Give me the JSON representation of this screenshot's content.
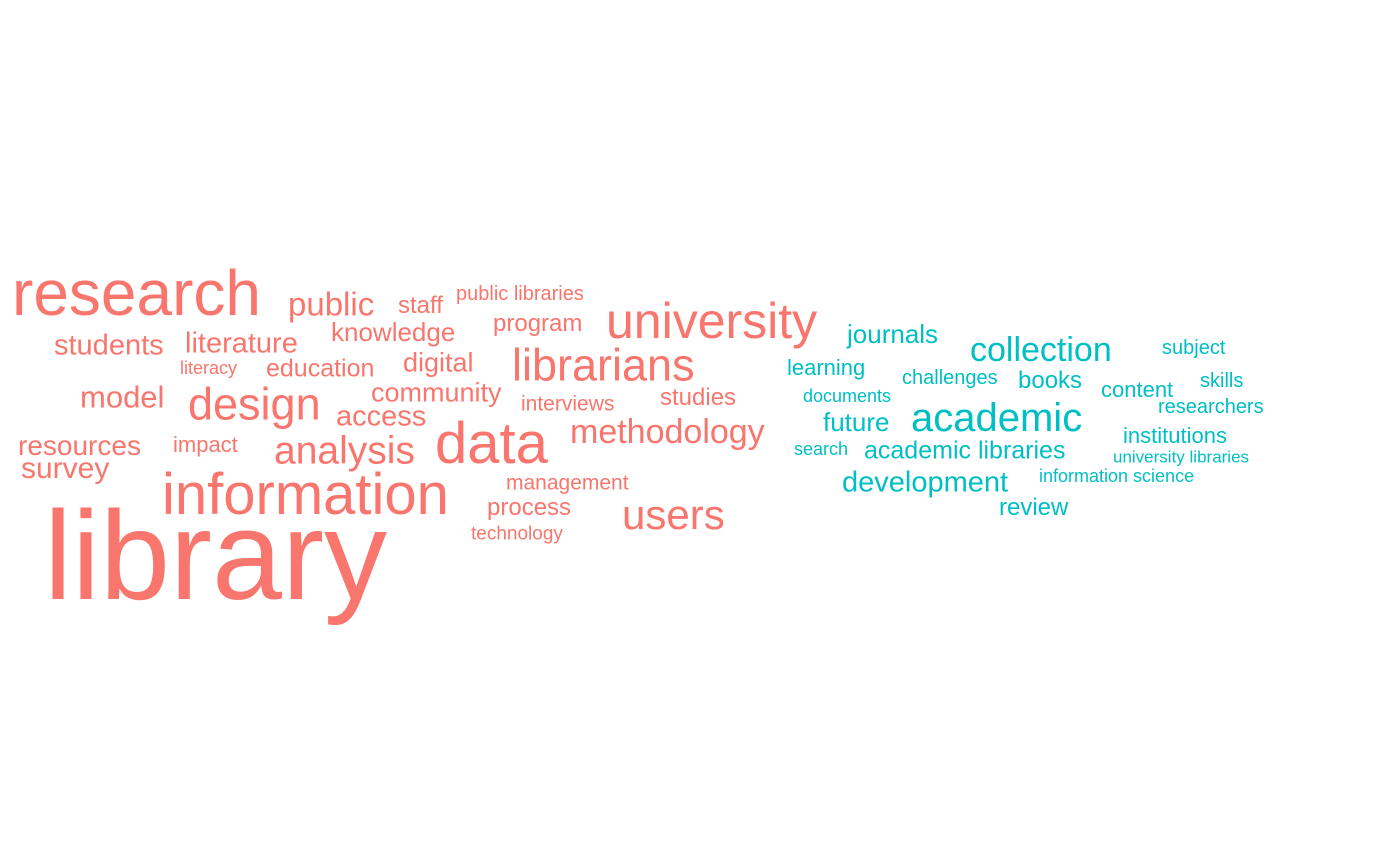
{
  "colors": {
    "group_a": "#F8766D",
    "group_b": "#00BFC4",
    "background": "#FFFFFF"
  },
  "words": [
    {
      "text": "library",
      "group": "a"
    },
    {
      "text": "research",
      "group": "a"
    },
    {
      "text": "information",
      "group": "a"
    },
    {
      "text": "data",
      "group": "a"
    },
    {
      "text": "university",
      "group": "a"
    },
    {
      "text": "librarians",
      "group": "a"
    },
    {
      "text": "design",
      "group": "a"
    },
    {
      "text": "analysis",
      "group": "a"
    },
    {
      "text": "users",
      "group": "a"
    },
    {
      "text": "methodology",
      "group": "a"
    },
    {
      "text": "public",
      "group": "a"
    },
    {
      "text": "students",
      "group": "a"
    },
    {
      "text": "literature",
      "group": "a"
    },
    {
      "text": "model",
      "group": "a"
    },
    {
      "text": "access",
      "group": "a"
    },
    {
      "text": "community",
      "group": "a"
    },
    {
      "text": "resources",
      "group": "a"
    },
    {
      "text": "survey",
      "group": "a"
    },
    {
      "text": "knowledge",
      "group": "a"
    },
    {
      "text": "digital",
      "group": "a"
    },
    {
      "text": "education",
      "group": "a"
    },
    {
      "text": "program",
      "group": "a"
    },
    {
      "text": "staff",
      "group": "a"
    },
    {
      "text": "studies",
      "group": "a"
    },
    {
      "text": "process",
      "group": "a"
    },
    {
      "text": "impact",
      "group": "a"
    },
    {
      "text": "management",
      "group": "a"
    },
    {
      "text": "interviews",
      "group": "a"
    },
    {
      "text": "public libraries",
      "group": "a"
    },
    {
      "text": "literacy",
      "group": "a"
    },
    {
      "text": "technology",
      "group": "a"
    },
    {
      "text": "academic",
      "group": "b"
    },
    {
      "text": "collection",
      "group": "b"
    },
    {
      "text": "development",
      "group": "b"
    },
    {
      "text": "journals",
      "group": "b"
    },
    {
      "text": "academic libraries",
      "group": "b"
    },
    {
      "text": "future",
      "group": "b"
    },
    {
      "text": "books",
      "group": "b"
    },
    {
      "text": "review",
      "group": "b"
    },
    {
      "text": "institutions",
      "group": "b"
    },
    {
      "text": "learning",
      "group": "b"
    },
    {
      "text": "content",
      "group": "b"
    },
    {
      "text": "researchers",
      "group": "b"
    },
    {
      "text": "challenges",
      "group": "b"
    },
    {
      "text": "subject",
      "group": "b"
    },
    {
      "text": "skills",
      "group": "b"
    },
    {
      "text": "documents",
      "group": "b"
    },
    {
      "text": "search",
      "group": "b"
    },
    {
      "text": "information science",
      "group": "b"
    },
    {
      "text": "university libraries",
      "group": "b"
    }
  ]
}
